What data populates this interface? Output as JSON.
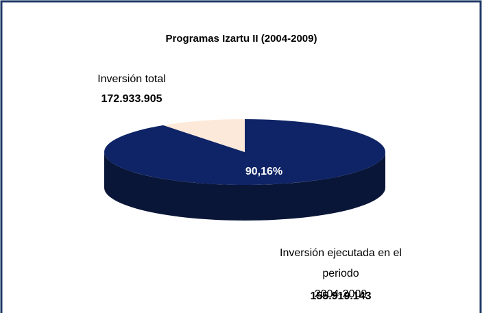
{
  "chart_data": {
    "type": "pie3d",
    "title": "Programas Izartu II (2004-2009)",
    "categories": [
      "Inversión ejecutada en el periodo\n2004-2009",
      "Inversión total"
    ],
    "values": [
      90.16,
      9.84
    ],
    "value_labels": [
      "90,16%",
      null
    ],
    "amounts": [
      {
        "value": 155919143,
        "label": "155.919.143"
      },
      {
        "value": 172933905,
        "label": "172.933.905"
      }
    ],
    "colors": [
      "#0f2466",
      "#fde9d9"
    ],
    "side_colors": [
      "#0a1638",
      "#d8c0b0"
    ]
  }
}
